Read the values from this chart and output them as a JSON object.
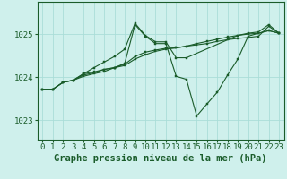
{
  "bg_color": "#cff0ec",
  "grid_color": "#aaddd8",
  "line_color": "#1a5c2a",
  "xlabel": "Graphe pression niveau de la mer (hPa)",
  "xlabel_fontsize": 7.5,
  "tick_fontsize": 6.5,
  "yticks": [
    1023,
    1024,
    1025
  ],
  "ylim": [
    1022.55,
    1025.75
  ],
  "xlim": [
    -0.5,
    23.5
  ],
  "xticks": [
    0,
    1,
    2,
    3,
    4,
    5,
    6,
    7,
    8,
    9,
    10,
    11,
    12,
    13,
    14,
    15,
    16,
    17,
    18,
    19,
    20,
    21,
    22,
    23
  ],
  "series": [
    {
      "x": [
        0,
        1,
        2,
        3,
        4,
        5,
        6,
        7,
        8,
        9,
        10,
        11,
        12,
        13,
        14,
        15,
        16,
        17,
        18,
        19,
        20,
        21,
        22,
        23
      ],
      "y": [
        1023.72,
        1023.72,
        1023.88,
        1023.93,
        1024.05,
        1024.1,
        1024.18,
        1024.22,
        1024.32,
        1025.22,
        1024.95,
        1024.78,
        1024.78,
        1024.02,
        1023.95,
        1023.1,
        1023.38,
        1023.65,
        1024.05,
        1024.42,
        1024.95,
        1025.02,
        1025.08,
        1025.02
      ]
    },
    {
      "x": [
        0,
        1,
        2,
        3,
        4,
        5,
        6,
        7,
        8,
        9,
        10,
        11,
        12,
        13,
        14,
        15,
        16,
        17,
        18,
        19,
        20,
        21,
        22,
        23
      ],
      "y": [
        1023.72,
        1023.72,
        1023.88,
        1023.93,
        1024.02,
        1024.08,
        1024.13,
        1024.22,
        1024.27,
        1024.42,
        1024.52,
        1024.6,
        1024.65,
        1024.68,
        1024.72,
        1024.78,
        1024.83,
        1024.88,
        1024.93,
        1024.97,
        1025.0,
        1025.02,
        1025.08,
        1025.02
      ]
    },
    {
      "x": [
        0,
        1,
        2,
        3,
        4,
        5,
        6,
        7,
        8,
        9,
        10,
        11,
        12,
        13,
        14,
        15,
        16,
        17,
        18,
        19,
        20,
        21,
        22,
        23
      ],
      "y": [
        1023.72,
        1023.72,
        1023.88,
        1023.93,
        1024.08,
        1024.12,
        1024.18,
        1024.22,
        1024.3,
        1024.48,
        1024.58,
        1024.63,
        1024.67,
        1024.68,
        1024.72,
        1024.75,
        1024.78,
        1024.83,
        1024.87,
        1024.9,
        1024.92,
        1024.95,
        1025.18,
        1025.02
      ]
    },
    {
      "x": [
        3,
        4,
        5,
        6,
        7,
        8,
        9,
        10,
        11,
        12,
        13,
        14,
        19,
        20,
        21,
        22,
        23
      ],
      "y": [
        1023.93,
        1024.08,
        1024.22,
        1024.35,
        1024.48,
        1024.65,
        1025.25,
        1024.97,
        1024.82,
        1024.82,
        1024.45,
        1024.45,
        1024.97,
        1025.02,
        1025.05,
        1025.22,
        1025.02
      ]
    }
  ]
}
